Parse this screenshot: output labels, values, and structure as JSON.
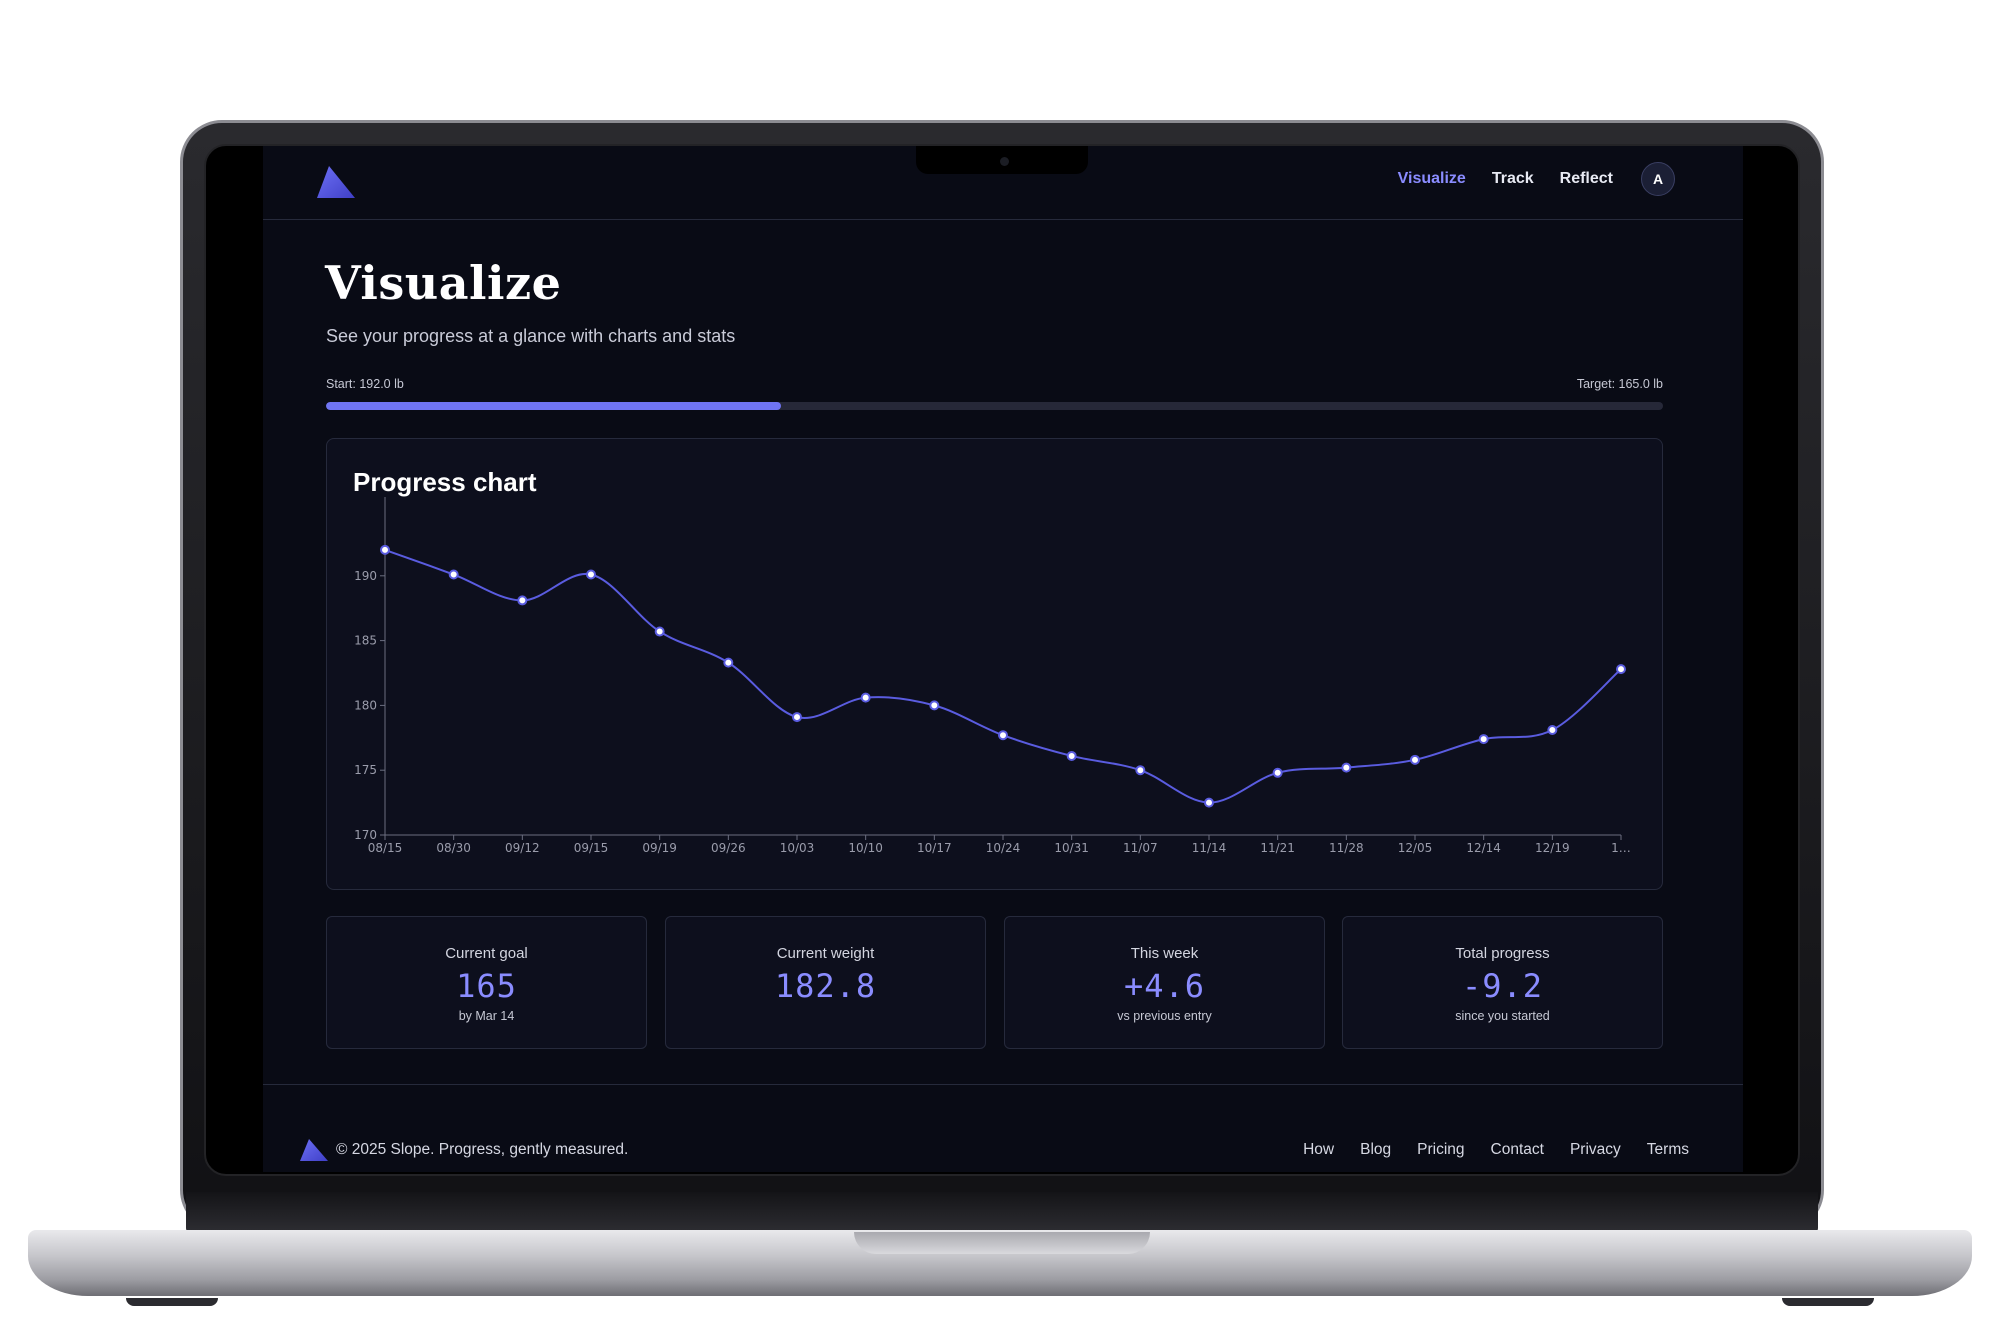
{
  "header": {
    "logo_icon": "slope-triangle-logo",
    "nav": [
      {
        "label": "Visualize",
        "active": true
      },
      {
        "label": "Track",
        "active": false
      },
      {
        "label": "Reflect",
        "active": false
      }
    ],
    "avatar_initial": "A"
  },
  "page": {
    "title": "Visualize",
    "subtitle": "See your progress at a glance with charts and stats"
  },
  "progress": {
    "start_label": "Start: 192.0 lb",
    "target_label": "Target: 165.0 lb",
    "fraction": 0.34
  },
  "chart_card": {
    "title": "Progress chart"
  },
  "chart_data": {
    "type": "line",
    "categories": [
      "08/15",
      "08/30",
      "09/12",
      "09/15",
      "09/19",
      "09/26",
      "10/03",
      "10/10",
      "10/17",
      "10/24",
      "10/31",
      "11/07",
      "11/14",
      "11/21",
      "11/28",
      "12/05",
      "12/14",
      "12/19",
      "1…"
    ],
    "series": [
      {
        "values": [
          192.0,
          190.1,
          188.1,
          190.1,
          185.7,
          183.3,
          179.1,
          180.6,
          180.0,
          177.7,
          176.1,
          175.0,
          172.5,
          174.8,
          175.2,
          175.8,
          177.4,
          178.1,
          182.8
        ]
      }
    ],
    "yticks": [
      170,
      175,
      180,
      185,
      190
    ],
    "ylim": [
      170,
      195
    ],
    "xlabel": "",
    "ylabel": "",
    "grid": false,
    "line_color": "#5a5ce0",
    "point_fill": "#ffffff"
  },
  "stats": [
    {
      "label": "Current goal",
      "value": "165",
      "sub": "by Mar 14"
    },
    {
      "label": "Current weight",
      "value": "182.8",
      "sub": ""
    },
    {
      "label": "This week",
      "value": "+4.6",
      "sub": "vs previous entry"
    },
    {
      "label": "Total progress",
      "value": "-9.2",
      "sub": "since you started"
    }
  ],
  "footer": {
    "copyright": "© 2025 Slope. Progress, gently measured.",
    "links": [
      "How",
      "Blog",
      "Pricing",
      "Contact",
      "Privacy",
      "Terms"
    ]
  },
  "colors": {
    "accent": "#8a8cff",
    "background": "#090b15",
    "card": "#0d0f1d"
  }
}
